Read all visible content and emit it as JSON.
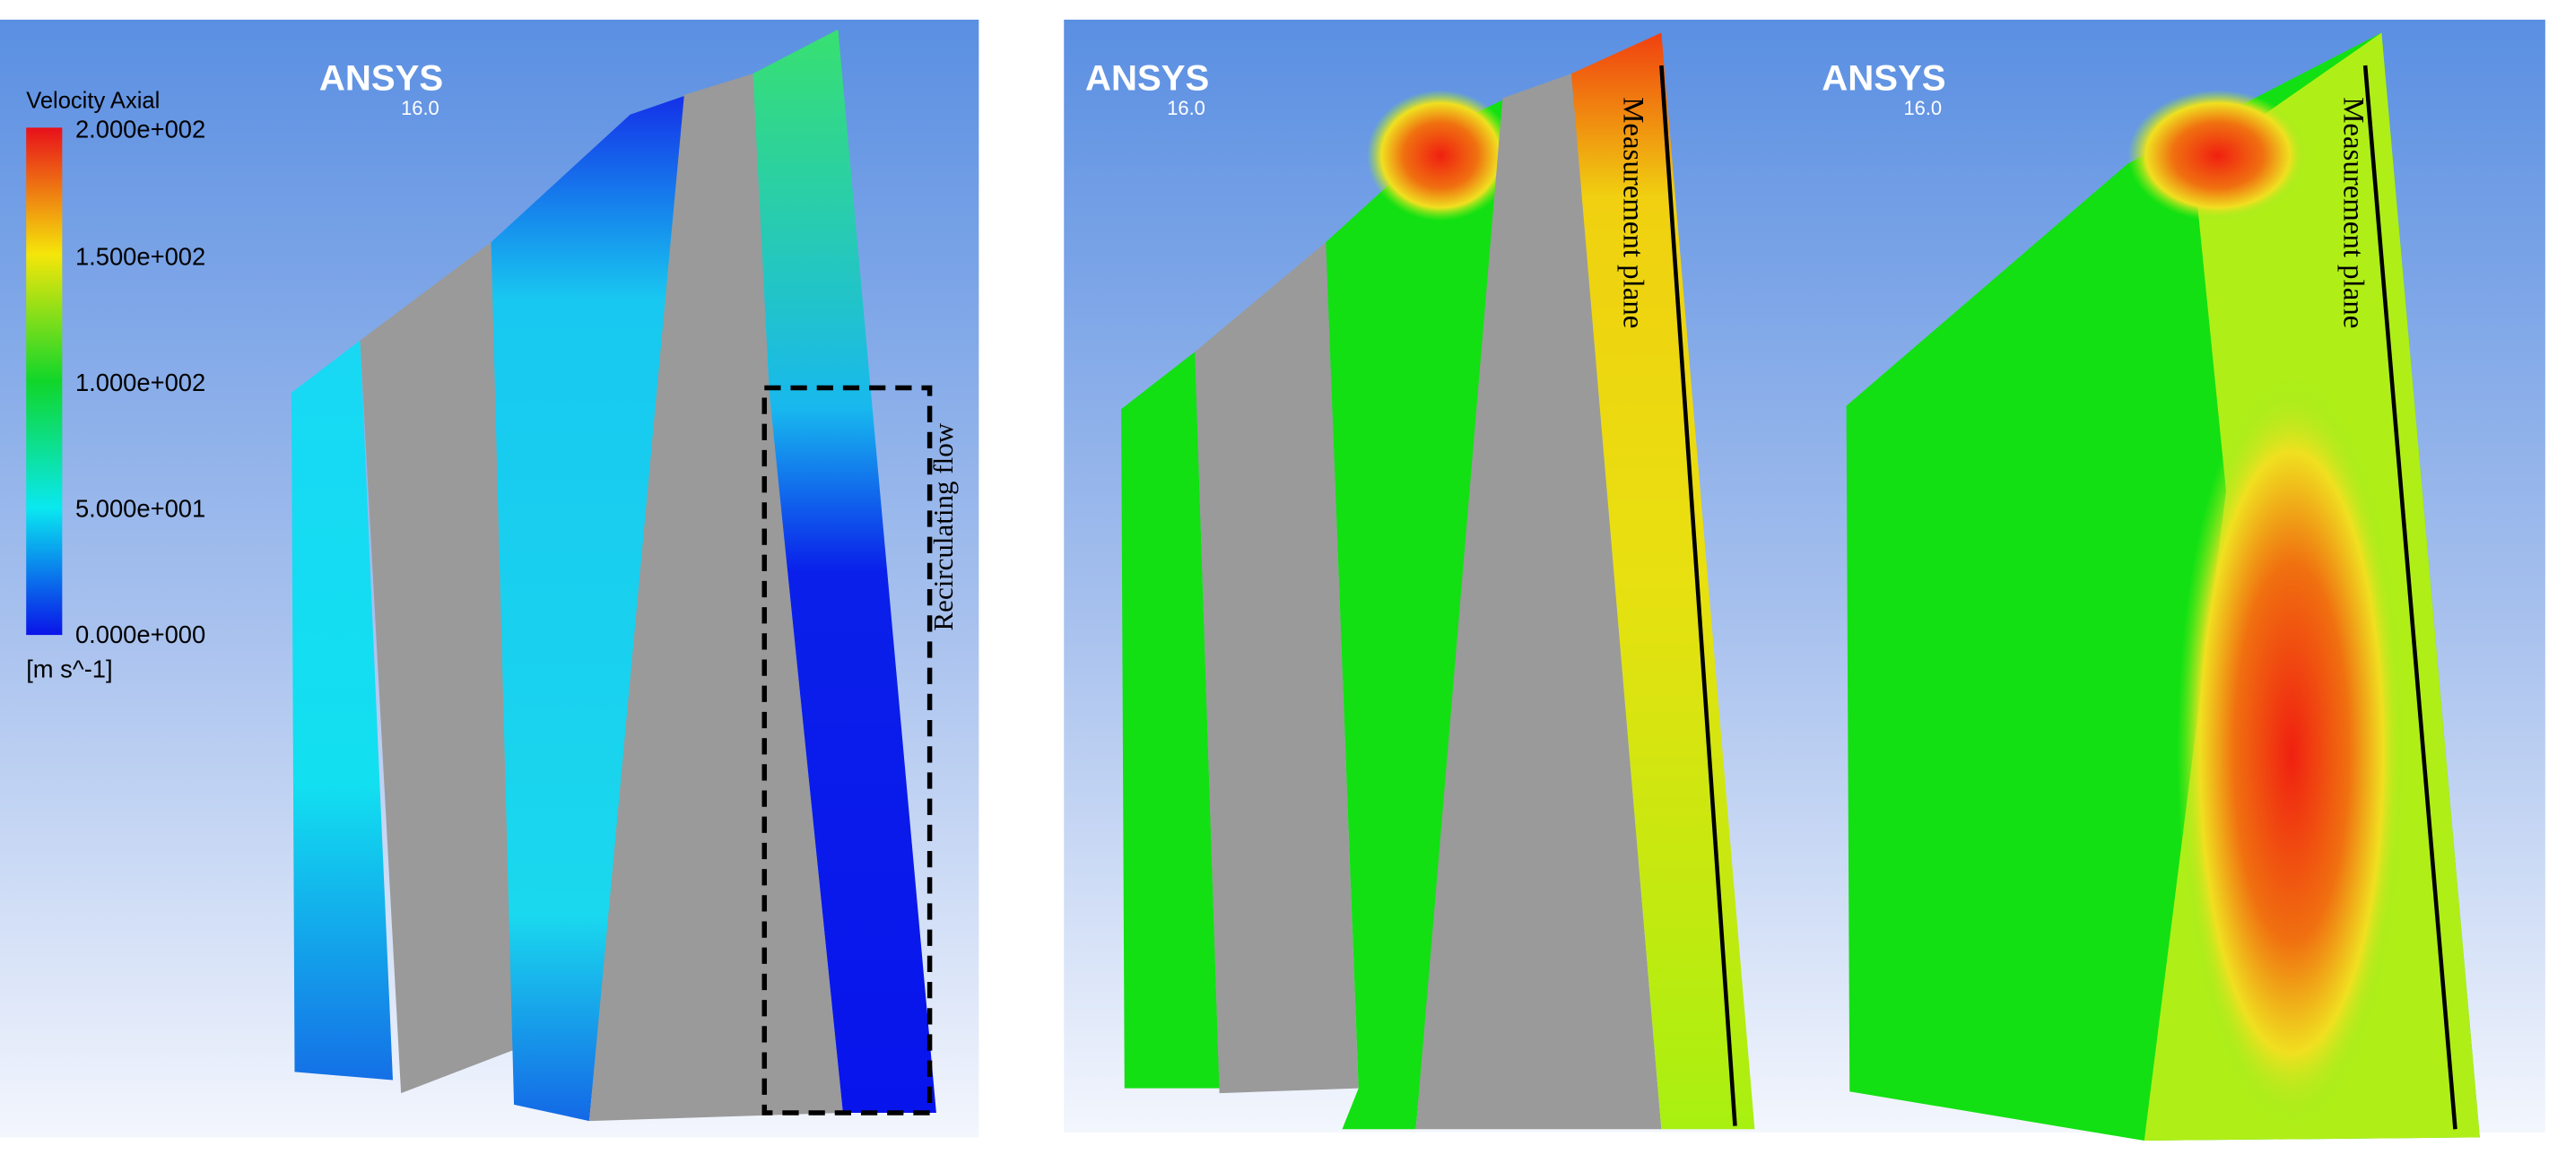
{
  "legend": {
    "title": "Velocity Axial",
    "ticks": [
      "2.000e+002",
      "1.500e+002",
      "1.000e+002",
      "5.000e+001",
      "0.000e+000"
    ],
    "unit": "[m s^-1]"
  },
  "panels": [
    {
      "logo": {
        "name": "ANSYS",
        "version": "16.0"
      },
      "annotation": "Recirculating flow"
    },
    {
      "logo": {
        "name": "ANSYS",
        "version": "16.0"
      },
      "annotation": "Measurement plane"
    },
    {
      "logo": {
        "name": "ANSYS",
        "version": "16.0"
      },
      "annotation": "Measurement plane"
    }
  ]
}
